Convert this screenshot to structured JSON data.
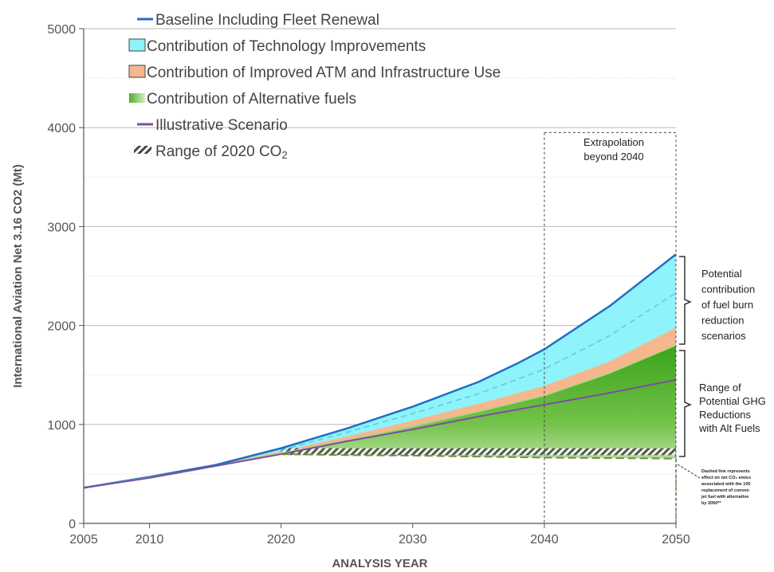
{
  "chart_data": {
    "type": "area",
    "title": "",
    "xlabel": "ANALYSIS YEAR",
    "ylabel": "International Aviation Net 3.16 CO2 (Mt)",
    "xlim": [
      2005,
      2050
    ],
    "ylim": [
      0,
      5000
    ],
    "x_ticks": [
      "2005",
      "2010",
      "2020",
      "2030",
      "2040",
      "2050"
    ],
    "y_ticks": [
      "0",
      "1000",
      "2000",
      "3000",
      "4000",
      "5000"
    ],
    "grid": true,
    "legend": [
      {
        "label": "Baseline Including Fleet Renewal",
        "color": "#1f6fc4",
        "style": "line"
      },
      {
        "label": "Contribution of Technology Improvements",
        "color": "#8ef3fa",
        "style": "patch"
      },
      {
        "label": "Contribution of Improved ATM and Infrastructure Use",
        "color": "#f5b78e",
        "style": "patch"
      },
      {
        "label": "Contribution of Alternative fuels",
        "color": "#6fbf3a",
        "style": "gradient-patch"
      },
      {
        "label": "Illustrative Scenario",
        "color": "#7a4fa0",
        "style": "line"
      },
      {
        "label": "Range of 2020 CO",
        "sub": "2",
        "color": "#555555",
        "style": "hatch"
      }
    ],
    "series": [
      {
        "name": "Baseline Including Fleet Renewal",
        "x": [
          2005,
          2010,
          2015,
          2020,
          2025,
          2030,
          2035,
          2038,
          2040,
          2045,
          2050
        ],
        "y": [
          360,
          470,
          590,
          760,
          960,
          1180,
          1430,
          1620,
          1760,
          2200,
          2720
        ]
      },
      {
        "name": "Contribution of Technology Improvements",
        "x": [
          2005,
          2010,
          2015,
          2020,
          2025,
          2030,
          2035,
          2040,
          2045,
          2050
        ],
        "y": [
          360,
          470,
          590,
          730,
          880,
          1040,
          1210,
          1390,
          1640,
          1980
        ]
      },
      {
        "name": "Contribution of Improved ATM and Infrastructure Use",
        "x": [
          2005,
          2010,
          2015,
          2020,
          2025,
          2030,
          2035,
          2040,
          2045,
          2050
        ],
        "y": [
          360,
          465,
          580,
          710,
          840,
          980,
          1130,
          1290,
          1520,
          1800
        ]
      },
      {
        "name": "Illustrative Scenario",
        "x": [
          2005,
          2010,
          2015,
          2020,
          2025,
          2030,
          2035,
          2040,
          2045,
          2050
        ],
        "y": [
          360,
          460,
          580,
          700,
          830,
          950,
          1080,
          1200,
          1320,
          1450
        ]
      },
      {
        "name": "Dashed line",
        "x": [
          2020,
          2025,
          2030,
          2035,
          2040,
          2045,
          2050
        ],
        "y": [
          700,
          690,
          685,
          675,
          665,
          660,
          655
        ]
      }
    ],
    "tech_dashed": {
      "x": [
        2020,
        2025,
        2030,
        2035,
        2040,
        2045,
        2050
      ],
      "y": [
        740,
        920,
        1110,
        1310,
        1560,
        1900,
        2330
      ]
    },
    "range_2020": {
      "x": [
        2020,
        2050
      ],
      "y_low": 690,
      "y_high": 760
    },
    "extrapolation_box": {
      "x": [
        2040,
        2050
      ],
      "y": [
        0,
        3950
      ]
    },
    "annotations": {
      "extrapolation": [
        "Extrapolation",
        "beyond 2040"
      ],
      "fuel_burn": [
        "Potential",
        "contribution",
        "of fuel burn",
        "reduction",
        "scenarios"
      ],
      "ghg": [
        "Range of",
        "Potential GHG",
        "Reductions",
        "with Alt Fuels"
      ],
      "dashed_note": [
        "Dashed line represents",
        "effect on net CO₂ emiss",
        "associated with the 100",
        "replacement of conven",
        "jet fuel with alternative",
        "by 2050**"
      ]
    }
  }
}
